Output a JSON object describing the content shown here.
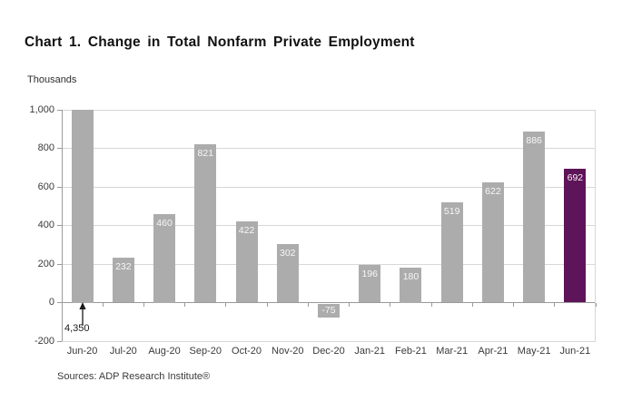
{
  "title": "Chart 1. Change in Total Nonfarm Private Employment",
  "unit_label": "Thousands",
  "source": "Sources: ADP Research Institute®",
  "annotation": {
    "text": "4,350",
    "target_category": "Jun-20",
    "note": "arrow points to clipped Jun-20 bar whose true value is 4,350"
  },
  "colors": {
    "bar": "#acacac",
    "highlight_bar": "#5e1458",
    "gridline": "#d7d7d7",
    "axis": "#9a9a9a",
    "value_label": "#f7f7f7",
    "text": "#3a3a3a"
  },
  "chart_data": {
    "type": "bar",
    "title": "Chart 1. Change in Total Nonfarm Private Employment",
    "ylabel": "Thousands",
    "xlabel": "",
    "categories": [
      "Jun-20",
      "Jul-20",
      "Aug-20",
      "Sep-20",
      "Oct-20",
      "Nov-20",
      "Dec-20",
      "Jan-21",
      "Feb-21",
      "Mar-21",
      "Apr-21",
      "May-21",
      "Jun-21"
    ],
    "values": [
      4350,
      232,
      460,
      821,
      422,
      302,
      -75,
      196,
      180,
      519,
      622,
      886,
      692
    ],
    "bar_value_labels": [
      null,
      "232",
      "460",
      "821",
      "422",
      "302",
      "-75",
      "196",
      "180",
      "519",
      "622",
      "886",
      "692"
    ],
    "highlight_category": "Jun-21",
    "ylim": [
      -200,
      1000
    ],
    "ytick_interval": 200,
    "ytick_labels": [
      "1,000",
      "800",
      "600",
      "400",
      "200",
      "0",
      "-200"
    ],
    "clip_max": 1000,
    "grid": "horizontal",
    "legend_position": "none"
  }
}
